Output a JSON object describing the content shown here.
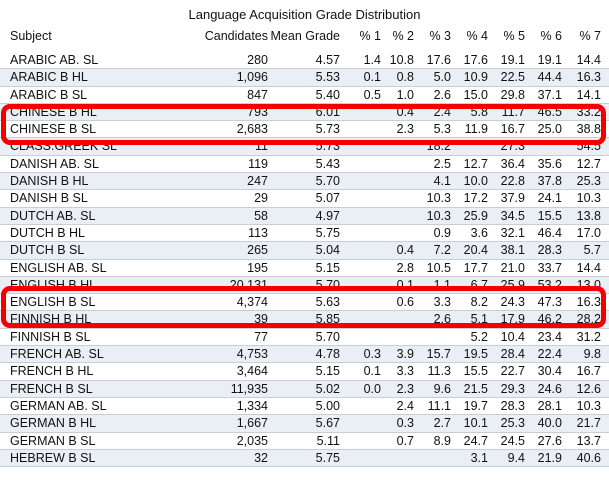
{
  "title": "Language Acquisition Grade Distribution",
  "headers": {
    "subject": "Subject",
    "candidates": "Candidates",
    "mean": "Mean Grade",
    "p1": "% 1",
    "p2": "% 2",
    "p3": "% 3",
    "p4": "% 4",
    "p5": "% 5",
    "p6": "% 6",
    "p7": "% 7"
  },
  "rows": [
    {
      "subject": "ARABIC AB. SL",
      "candidates": "280",
      "mean": "4.57",
      "p1": "1.4",
      "p2": "10.8",
      "p3": "17.6",
      "p4": "17.6",
      "p5": "19.1",
      "p6": "19.1",
      "p7": "14.4"
    },
    {
      "subject": "ARABIC B HL",
      "candidates": "1,096",
      "mean": "5.53",
      "p1": "0.1",
      "p2": "0.8",
      "p3": "5.0",
      "p4": "10.9",
      "p5": "22.5",
      "p6": "44.4",
      "p7": "16.3"
    },
    {
      "subject": "ARABIC B SL",
      "candidates": "847",
      "mean": "5.40",
      "p1": "0.5",
      "p2": "1.0",
      "p3": "2.6",
      "p4": "15.0",
      "p5": "29.8",
      "p6": "37.1",
      "p7": "14.1"
    },
    {
      "subject": "CHINESE B HL",
      "candidates": "793",
      "mean": "6.01",
      "p1": "",
      "p2": "0.4",
      "p3": "2.4",
      "p4": "5.8",
      "p5": "11.7",
      "p6": "46.5",
      "p7": "33.2"
    },
    {
      "subject": "CHINESE B SL",
      "candidates": "2,683",
      "mean": "5.73",
      "p1": "",
      "p2": "2.3",
      "p3": "5.3",
      "p4": "11.9",
      "p5": "16.7",
      "p6": "25.0",
      "p7": "38.8"
    },
    {
      "subject": "CLASS.GREEK SL",
      "candidates": "11",
      "mean": "5.73",
      "p1": "",
      "p2": "",
      "p3": "18.2",
      "p4": "",
      "p5": "27.3",
      "p6": "",
      "p7": "54.5"
    },
    {
      "subject": "DANISH AB. SL",
      "candidates": "119",
      "mean": "5.43",
      "p1": "",
      "p2": "",
      "p3": "2.5",
      "p4": "12.7",
      "p5": "36.4",
      "p6": "35.6",
      "p7": "12.7"
    },
    {
      "subject": "DANISH B HL",
      "candidates": "247",
      "mean": "5.70",
      "p1": "",
      "p2": "",
      "p3": "4.1",
      "p4": "10.0",
      "p5": "22.8",
      "p6": "37.8",
      "p7": "25.3"
    },
    {
      "subject": "DANISH B SL",
      "candidates": "29",
      "mean": "5.07",
      "p1": "",
      "p2": "",
      "p3": "10.3",
      "p4": "17.2",
      "p5": "37.9",
      "p6": "24.1",
      "p7": "10.3"
    },
    {
      "subject": "DUTCH AB. SL",
      "candidates": "58",
      "mean": "4.97",
      "p1": "",
      "p2": "",
      "p3": "10.3",
      "p4": "25.9",
      "p5": "34.5",
      "p6": "15.5",
      "p7": "13.8"
    },
    {
      "subject": "DUTCH B HL",
      "candidates": "113",
      "mean": "5.75",
      "p1": "",
      "p2": "",
      "p3": "0.9",
      "p4": "3.6",
      "p5": "32.1",
      "p6": "46.4",
      "p7": "17.0"
    },
    {
      "subject": "DUTCH B SL",
      "candidates": "265",
      "mean": "5.04",
      "p1": "",
      "p2": "0.4",
      "p3": "7.2",
      "p4": "20.4",
      "p5": "38.1",
      "p6": "28.3",
      "p7": "5.7"
    },
    {
      "subject": "ENGLISH AB. SL",
      "candidates": "195",
      "mean": "5.15",
      "p1": "",
      "p2": "2.8",
      "p3": "10.5",
      "p4": "17.7",
      "p5": "21.0",
      "p6": "33.7",
      "p7": "14.4"
    },
    {
      "subject": "ENGLISH B HL",
      "candidates": "20,131",
      "mean": "5.70",
      "p1": "",
      "p2": "0.1",
      "p3": "1.1",
      "p4": "6.7",
      "p5": "25.9",
      "p6": "53.2",
      "p7": "13.0"
    },
    {
      "subject": "ENGLISH B SL",
      "candidates": "4,374",
      "mean": "5.63",
      "p1": "",
      "p2": "0.6",
      "p3": "3.3",
      "p4": "8.2",
      "p5": "24.3",
      "p6": "47.3",
      "p7": "16.3"
    },
    {
      "subject": "FINNISH B HL",
      "candidates": "39",
      "mean": "5.85",
      "p1": "",
      "p2": "",
      "p3": "2.6",
      "p4": "5.1",
      "p5": "17.9",
      "p6": "46.2",
      "p7": "28.2"
    },
    {
      "subject": "FINNISH B SL",
      "candidates": "77",
      "mean": "5.70",
      "p1": "",
      "p2": "",
      "p3": "",
      "p4": "5.2",
      "p5": "10.4",
      "p6": "23.4",
      "p7": "31.2"
    },
    {
      "subject": "FRENCH AB. SL",
      "candidates": "4,753",
      "mean": "4.78",
      "p1": "0.3",
      "p2": "3.9",
      "p3": "15.7",
      "p4": "19.5",
      "p5": "28.4",
      "p6": "22.4",
      "p7": "9.8"
    },
    {
      "subject": "FRENCH B HL",
      "candidates": "3,464",
      "mean": "5.15",
      "p1": "0.1",
      "p2": "3.3",
      "p3": "11.3",
      "p4": "15.5",
      "p5": "22.7",
      "p6": "30.4",
      "p7": "16.7"
    },
    {
      "subject": "FRENCH B SL",
      "candidates": "11,935",
      "mean": "5.02",
      "p1": "0.0",
      "p2": "2.3",
      "p3": "9.6",
      "p4": "21.5",
      "p5": "29.3",
      "p6": "24.6",
      "p7": "12.6"
    },
    {
      "subject": "GERMAN AB. SL",
      "candidates": "1,334",
      "mean": "5.00",
      "p1": "",
      "p2": "2.4",
      "p3": "11.1",
      "p4": "19.7",
      "p5": "28.3",
      "p6": "28.1",
      "p7": "10.3"
    },
    {
      "subject": "GERMAN B HL",
      "candidates": "1,667",
      "mean": "5.67",
      "p1": "",
      "p2": "0.3",
      "p3": "2.7",
      "p4": "10.1",
      "p5": "25.3",
      "p6": "40.0",
      "p7": "21.7"
    },
    {
      "subject": "GERMAN B SL",
      "candidates": "2,035",
      "mean": "5.11",
      "p1": "",
      "p2": "0.7",
      "p3": "8.9",
      "p4": "24.7",
      "p5": "24.5",
      "p6": "27.6",
      "p7": "13.7"
    },
    {
      "subject": "HEBREW B SL",
      "candidates": "32",
      "mean": "5.75",
      "p1": "",
      "p2": "",
      "p3": "",
      "p4": "3.1",
      "p5": "9.4",
      "p6": "21.9",
      "p7": "40.6"
    }
  ],
  "accent_colors": {
    "highlight": "#f20000",
    "row_alt": "#eaeef5"
  }
}
